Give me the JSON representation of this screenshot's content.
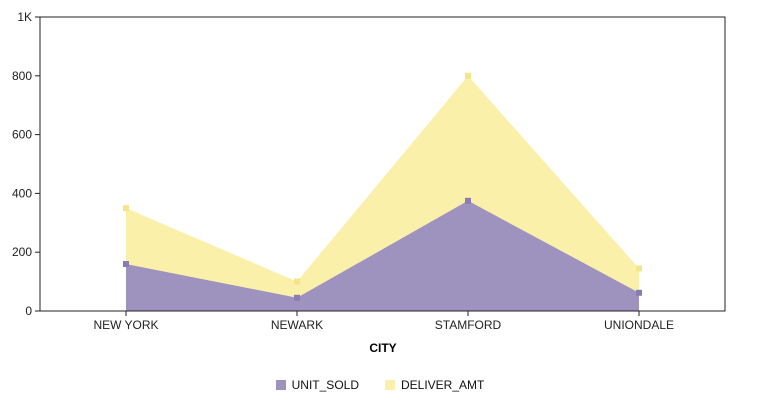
{
  "chart_data": {
    "type": "area",
    "xlabel": "CITY",
    "ylabel": "",
    "categories": [
      "NEW YORK",
      "NEWARK",
      "STAMFORD",
      "UNIONDALE"
    ],
    "series": [
      {
        "name": "UNIT_SOLD",
        "values": [
          160,
          45,
          375,
          62
        ],
        "color": "#9e92bf",
        "marker_color": "#8a7db3"
      },
      {
        "name": "DELIVER_AMT",
        "values": [
          350,
          100,
          800,
          145
        ],
        "color": "#fbf0aa",
        "marker_color": "#f4e58a"
      }
    ],
    "ylim": [
      0,
      1000
    ],
    "yticks": [
      {
        "value": 0,
        "label": "0"
      },
      {
        "value": 200,
        "label": "200"
      },
      {
        "value": 400,
        "label": "400"
      },
      {
        "value": 600,
        "label": "600"
      },
      {
        "value": 800,
        "label": "800"
      },
      {
        "value": 1000,
        "label": "1K"
      }
    ],
    "stacked": false,
    "grid": false,
    "legend_position": "bottom"
  }
}
